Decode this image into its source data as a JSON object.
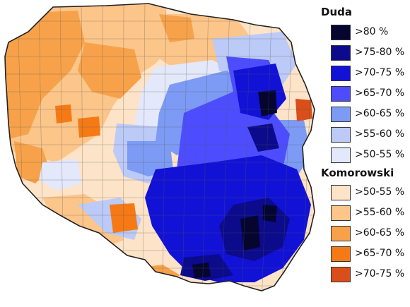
{
  "legend": {
    "duda": {
      "title": "Duda",
      "items": [
        {
          "label": ">80 %",
          "color": "#050530"
        },
        {
          "label": ">75-80 %",
          "color": "#0b0b8c"
        },
        {
          "label": ">70-75 %",
          "color": "#1212d6"
        },
        {
          "label": ">65-70 %",
          "color": "#4d4dff"
        },
        {
          "label": ">60-65 %",
          "color": "#7d9bf4"
        },
        {
          "label": ">55-60 %",
          "color": "#bccaf7"
        },
        {
          "label": ">50-55 %",
          "color": "#e3e8fb"
        }
      ]
    },
    "komorowski": {
      "title": "Komorowski",
      "items": [
        {
          "label": ">50-55 %",
          "color": "#fde3c7"
        },
        {
          "label": ">55-60 %",
          "color": "#fcc589"
        },
        {
          "label": ">60-65 %",
          "color": "#f7a24a"
        },
        {
          "label": ">65-70 %",
          "color": "#f57a16"
        },
        {
          "label": ">70-75 %",
          "color": "#d94e1a"
        }
      ]
    }
  }
}
